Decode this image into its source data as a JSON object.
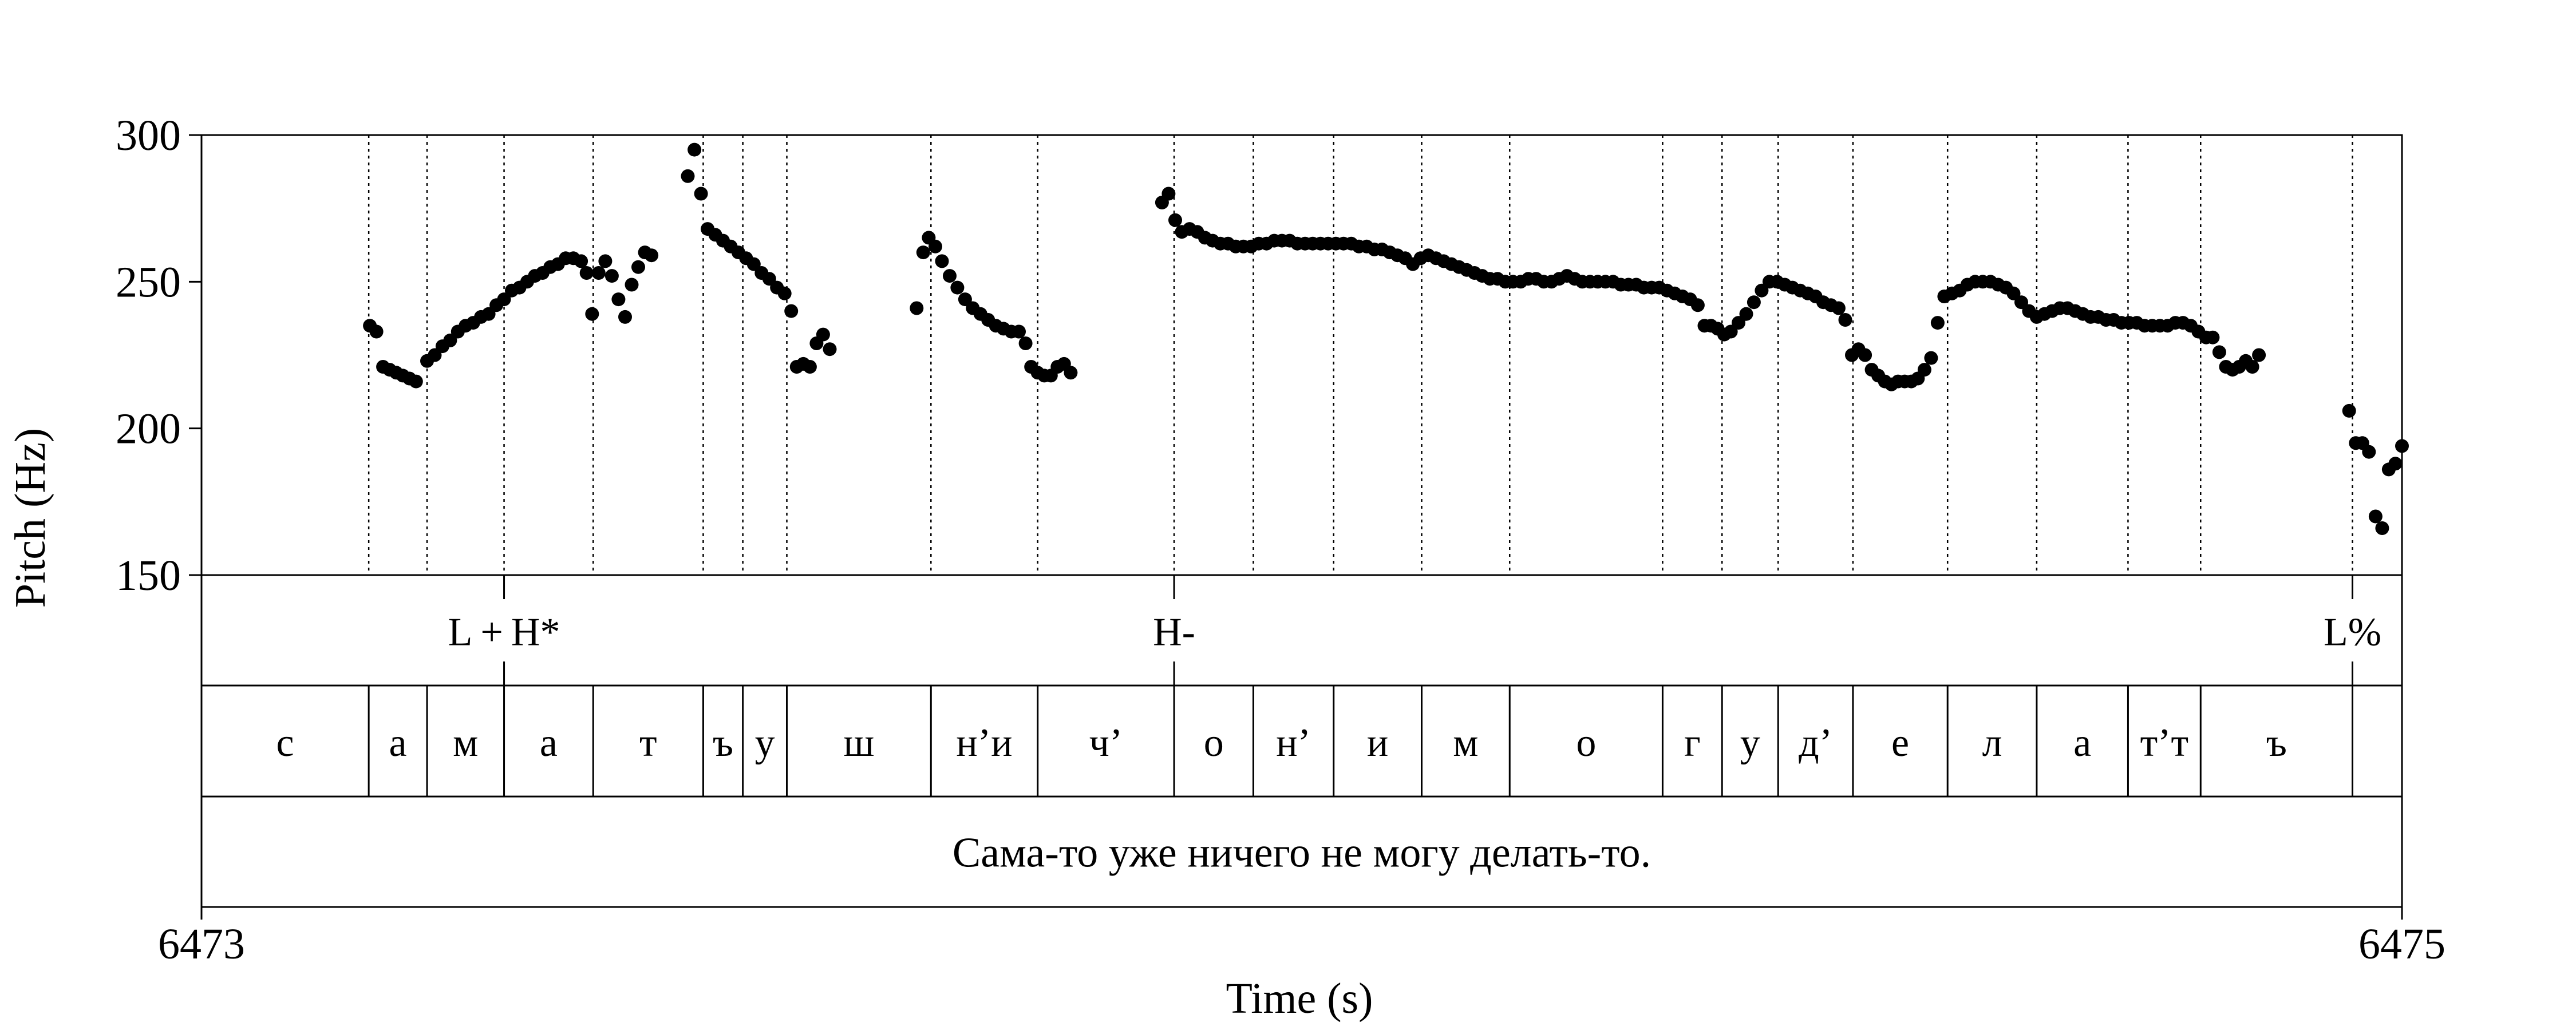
{
  "colors": {
    "foreground": "#000000",
    "background": "#ffffff"
  },
  "chart_data": {
    "type": "scatter",
    "xlabel": "Time (s)",
    "ylabel": "Pitch (Hz)",
    "xlim": [
      6473,
      6475
    ],
    "ylim": [
      150,
      300
    ],
    "x_ticks": [
      "6473",
      "6475"
    ],
    "y_ticks": [
      "150",
      "200",
      "250",
      "300"
    ],
    "pitch_series": {
      "marker": "filled-circle",
      "points": [
        [
          6473.153,
          235
        ],
        [
          6473.159,
          233
        ],
        [
          6473.165,
          221
        ],
        [
          6473.171,
          220
        ],
        [
          6473.177,
          219
        ],
        [
          6473.183,
          218
        ],
        [
          6473.189,
          217
        ],
        [
          6473.195,
          216
        ],
        [
          6473.205,
          223
        ],
        [
          6473.212,
          225
        ],
        [
          6473.219,
          228
        ],
        [
          6473.226,
          230
        ],
        [
          6473.233,
          233
        ],
        [
          6473.24,
          235
        ],
        [
          6473.247,
          236
        ],
        [
          6473.254,
          238
        ],
        [
          6473.261,
          239
        ],
        [
          6473.268,
          242
        ],
        [
          6473.275,
          244
        ],
        [
          6473.282,
          247
        ],
        [
          6473.289,
          248
        ],
        [
          6473.296,
          250
        ],
        [
          6473.303,
          252
        ],
        [
          6473.31,
          253
        ],
        [
          6473.317,
          255
        ],
        [
          6473.324,
          256
        ],
        [
          6473.331,
          258
        ],
        [
          6473.338,
          258
        ],
        [
          6473.345,
          257
        ],
        [
          6473.35,
          253
        ],
        [
          6473.355,
          239
        ],
        [
          6473.361,
          253
        ],
        [
          6473.367,
          257
        ],
        [
          6473.373,
          252
        ],
        [
          6473.379,
          244
        ],
        [
          6473.385,
          238
        ],
        [
          6473.391,
          249
        ],
        [
          6473.397,
          255
        ],
        [
          6473.403,
          260
        ],
        [
          6473.409,
          259
        ],
        [
          6473.442,
          286
        ],
        [
          6473.448,
          295
        ],
        [
          6473.454,
          280
        ],
        [
          6473.46,
          268
        ],
        [
          6473.467,
          266
        ],
        [
          6473.474,
          264
        ],
        [
          6473.481,
          262
        ],
        [
          6473.488,
          260
        ],
        [
          6473.495,
          258
        ],
        [
          6473.502,
          256
        ],
        [
          6473.509,
          253
        ],
        [
          6473.516,
          251
        ],
        [
          6473.523,
          248
        ],
        [
          6473.53,
          246
        ],
        [
          6473.536,
          240
        ],
        [
          6473.541,
          221
        ],
        [
          6473.547,
          222
        ],
        [
          6473.553,
          221
        ],
        [
          6473.559,
          229
        ],
        [
          6473.565,
          232
        ],
        [
          6473.571,
          227
        ],
        [
          6473.65,
          241
        ],
        [
          6473.656,
          260
        ],
        [
          6473.661,
          265
        ],
        [
          6473.667,
          262
        ],
        [
          6473.673,
          257
        ],
        [
          6473.68,
          252
        ],
        [
          6473.687,
          248
        ],
        [
          6473.694,
          244
        ],
        [
          6473.701,
          241
        ],
        [
          6473.708,
          239
        ],
        [
          6473.715,
          237
        ],
        [
          6473.722,
          235
        ],
        [
          6473.729,
          234
        ],
        [
          6473.736,
          233
        ],
        [
          6473.743,
          233
        ],
        [
          6473.749,
          229
        ],
        [
          6473.754,
          221
        ],
        [
          6473.76,
          219
        ],
        [
          6473.766,
          218
        ],
        [
          6473.772,
          218
        ],
        [
          6473.778,
          221
        ],
        [
          6473.784,
          222
        ],
        [
          6473.79,
          219
        ],
        [
          6473.873,
          277
        ],
        [
          6473.879,
          280
        ],
        [
          6473.885,
          271
        ],
        [
          6473.891,
          267
        ],
        [
          6473.898,
          268
        ],
        [
          6473.905,
          267
        ],
        [
          6473.912,
          265
        ],
        [
          6473.919,
          264
        ],
        [
          6473.926,
          263
        ],
        [
          6473.933,
          263
        ],
        [
          6473.94,
          262
        ],
        [
          6473.947,
          262
        ],
        [
          6473.954,
          262
        ],
        [
          6473.961,
          263
        ],
        [
          6473.968,
          263
        ],
        [
          6473.975,
          264
        ],
        [
          6473.982,
          264
        ],
        [
          6473.989,
          264
        ],
        [
          6473.996,
          263
        ],
        [
          6474.003,
          263
        ],
        [
          6474.01,
          263
        ],
        [
          6474.017,
          263
        ],
        [
          6474.024,
          263
        ],
        [
          6474.031,
          263
        ],
        [
          6474.038,
          263
        ],
        [
          6474.045,
          263
        ],
        [
          6474.052,
          262
        ],
        [
          6474.059,
          262
        ],
        [
          6474.066,
          261
        ],
        [
          6474.073,
          261
        ],
        [
          6474.08,
          260
        ],
        [
          6474.087,
          259
        ],
        [
          6474.094,
          258
        ],
        [
          6474.101,
          256
        ],
        [
          6474.108,
          258
        ],
        [
          6474.115,
          259
        ],
        [
          6474.122,
          258
        ],
        [
          6474.129,
          257
        ],
        [
          6474.136,
          256
        ],
        [
          6474.143,
          255
        ],
        [
          6474.15,
          254
        ],
        [
          6474.157,
          253
        ],
        [
          6474.164,
          252
        ],
        [
          6474.171,
          251
        ],
        [
          6474.178,
          251
        ],
        [
          6474.185,
          250
        ],
        [
          6474.192,
          250
        ],
        [
          6474.199,
          250
        ],
        [
          6474.206,
          251
        ],
        [
          6474.213,
          251
        ],
        [
          6474.22,
          250
        ],
        [
          6474.227,
          250
        ],
        [
          6474.234,
          251
        ],
        [
          6474.241,
          252
        ],
        [
          6474.248,
          251
        ],
        [
          6474.255,
          250
        ],
        [
          6474.262,
          250
        ],
        [
          6474.269,
          250
        ],
        [
          6474.276,
          250
        ],
        [
          6474.283,
          250
        ],
        [
          6474.29,
          249
        ],
        [
          6474.297,
          249
        ],
        [
          6474.304,
          249
        ],
        [
          6474.311,
          248
        ],
        [
          6474.318,
          248
        ],
        [
          6474.325,
          248
        ],
        [
          6474.332,
          247
        ],
        [
          6474.339,
          246
        ],
        [
          6474.346,
          245
        ],
        [
          6474.353,
          244
        ],
        [
          6474.36,
          242
        ],
        [
          6474.366,
          235
        ],
        [
          6474.372,
          235
        ],
        [
          6474.378,
          234
        ],
        [
          6474.384,
          232
        ],
        [
          6474.39,
          233
        ],
        [
          6474.397,
          236
        ],
        [
          6474.404,
          239
        ],
        [
          6474.411,
          243
        ],
        [
          6474.418,
          247
        ],
        [
          6474.425,
          250
        ],
        [
          6474.432,
          250
        ],
        [
          6474.439,
          249
        ],
        [
          6474.446,
          248
        ],
        [
          6474.453,
          247
        ],
        [
          6474.46,
          246
        ],
        [
          6474.467,
          245
        ],
        [
          6474.474,
          243
        ],
        [
          6474.481,
          242
        ],
        [
          6474.488,
          241
        ],
        [
          6474.494,
          237
        ],
        [
          6474.5,
          225
        ],
        [
          6474.506,
          227
        ],
        [
          6474.512,
          225
        ],
        [
          6474.518,
          220
        ],
        [
          6474.524,
          218
        ],
        [
          6474.53,
          216
        ],
        [
          6474.536,
          215
        ],
        [
          6474.542,
          216
        ],
        [
          6474.548,
          216
        ],
        [
          6474.554,
          216
        ],
        [
          6474.56,
          217
        ],
        [
          6474.566,
          220
        ],
        [
          6474.572,
          224
        ],
        [
          6474.578,
          236
        ],
        [
          6474.584,
          245
        ],
        [
          6474.591,
          246
        ],
        [
          6474.598,
          247
        ],
        [
          6474.605,
          249
        ],
        [
          6474.612,
          250
        ],
        [
          6474.619,
          250
        ],
        [
          6474.626,
          250
        ],
        [
          6474.633,
          249
        ],
        [
          6474.64,
          248
        ],
        [
          6474.647,
          246
        ],
        [
          6474.654,
          243
        ],
        [
          6474.661,
          240
        ],
        [
          6474.668,
          238
        ],
        [
          6474.675,
          239
        ],
        [
          6474.682,
          240
        ],
        [
          6474.689,
          241
        ],
        [
          6474.696,
          241
        ],
        [
          6474.703,
          240
        ],
        [
          6474.71,
          239
        ],
        [
          6474.717,
          238
        ],
        [
          6474.724,
          238
        ],
        [
          6474.731,
          237
        ],
        [
          6474.738,
          237
        ],
        [
          6474.745,
          236
        ],
        [
          6474.752,
          236
        ],
        [
          6474.759,
          236
        ],
        [
          6474.766,
          235
        ],
        [
          6474.773,
          235
        ],
        [
          6474.78,
          235
        ],
        [
          6474.787,
          235
        ],
        [
          6474.794,
          236
        ],
        [
          6474.801,
          236
        ],
        [
          6474.808,
          235
        ],
        [
          6474.815,
          233
        ],
        [
          6474.822,
          231
        ],
        [
          6474.828,
          231
        ],
        [
          6474.834,
          226
        ],
        [
          6474.84,
          221
        ],
        [
          6474.846,
          220
        ],
        [
          6474.852,
          221
        ],
        [
          6474.858,
          223
        ],
        [
          6474.864,
          221
        ],
        [
          6474.87,
          225
        ],
        [
          6474.952,
          206
        ],
        [
          6474.958,
          195
        ],
        [
          6474.964,
          195
        ],
        [
          6474.97,
          192
        ],
        [
          6474.976,
          170
        ],
        [
          6474.982,
          166
        ],
        [
          6474.988,
          186
        ],
        [
          6474.994,
          188
        ],
        [
          6475.0,
          194
        ]
      ]
    },
    "dotted_boundaries": [
      6473.152,
      6473.205,
      6473.275,
      6473.356,
      6473.456,
      6473.492,
      6473.532,
      6473.663,
      6473.76,
      6473.884,
      6473.956,
      6474.029,
      6474.109,
      6474.189,
      6474.328,
      6474.382,
      6474.433,
      6474.501,
      6474.587,
      6474.668,
      6474.751,
      6474.817,
      6474.955
    ],
    "tones_tier": {
      "boundaries": [
        6473.275,
        6473.884,
        6474.955
      ],
      "labels": [
        {
          "text": "L + H*",
          "x": 6473.275
        },
        {
          "text": "H-",
          "x": 6473.884
        },
        {
          "text": "L%",
          "x": 6474.955
        }
      ]
    },
    "segments_tier": {
      "boundaries": [
        6473.152,
        6473.205,
        6473.275,
        6473.356,
        6473.456,
        6473.492,
        6473.532,
        6473.663,
        6473.76,
        6473.884,
        6473.956,
        6474.029,
        6474.109,
        6474.189,
        6474.328,
        6474.382,
        6474.433,
        6474.501,
        6474.587,
        6474.668,
        6474.751,
        6474.817,
        6474.955
      ],
      "labels": [
        "с",
        "а",
        "м",
        "а",
        "т",
        "ъ",
        "у",
        "ш",
        "н’и",
        "ч’",
        "о",
        "н’",
        "и",
        "м",
        "о",
        "г",
        "у",
        "д’",
        "е",
        "л",
        "а",
        "т’т",
        "ъ"
      ]
    },
    "sentence": "Сама-то уже ничего не могу делать-то."
  }
}
